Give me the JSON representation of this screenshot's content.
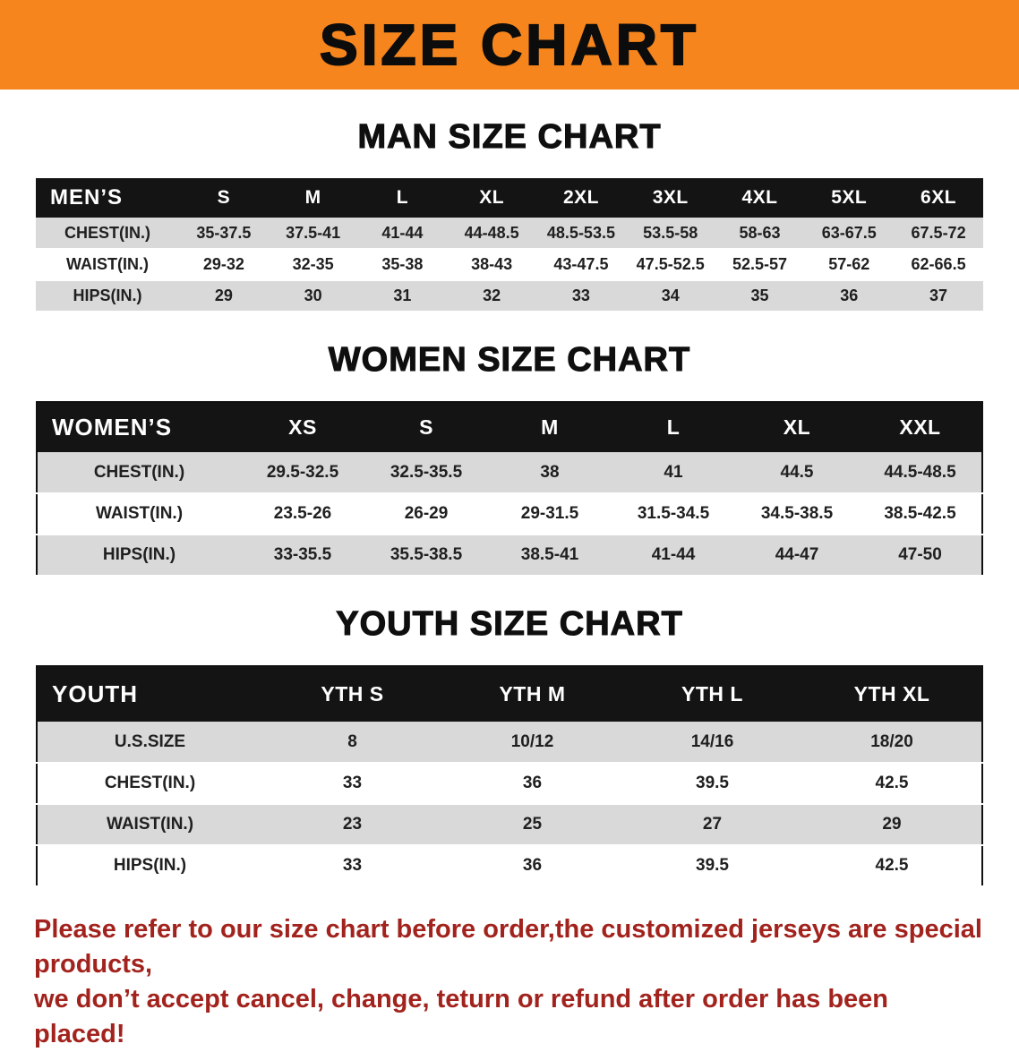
{
  "banner": {
    "title": "SIZE CHART"
  },
  "men": {
    "heading": "MAN SIZE CHART",
    "header": [
      "MEN’S",
      "S",
      "M",
      "L",
      "XL",
      "2XL",
      "3XL",
      "4XL",
      "5XL",
      "6XL"
    ],
    "rows": [
      [
        "CHEST(IN.)",
        "35-37.5",
        "37.5-41",
        "41-44",
        "44-48.5",
        "48.5-53.5",
        "53.5-58",
        "58-63",
        "63-67.5",
        "67.5-72"
      ],
      [
        "WAIST(IN.)",
        "29-32",
        "32-35",
        "35-38",
        "38-43",
        "43-47.5",
        "47.5-52.5",
        "52.5-57",
        "57-62",
        "62-66.5"
      ],
      [
        "HIPS(IN.)",
        "29",
        "30",
        "31",
        "32",
        "33",
        "34",
        "35",
        "36",
        "37"
      ]
    ]
  },
  "women": {
    "heading": "WOMEN SIZE CHART",
    "header": [
      "WOMEN’S",
      "XS",
      "S",
      "M",
      "L",
      "XL",
      "XXL"
    ],
    "rows": [
      [
        "CHEST(IN.)",
        "29.5-32.5",
        "32.5-35.5",
        "38",
        "41",
        "44.5",
        "44.5-48.5"
      ],
      [
        "WAIST(IN.)",
        "23.5-26",
        "26-29",
        "29-31.5",
        "31.5-34.5",
        "34.5-38.5",
        "38.5-42.5"
      ],
      [
        "HIPS(IN.)",
        "33-35.5",
        "35.5-38.5",
        "38.5-41",
        "41-44",
        "44-47",
        "47-50"
      ]
    ]
  },
  "youth": {
    "heading": "YOUTH SIZE CHART",
    "header": [
      "YOUTH",
      "YTH S",
      "YTH M",
      "YTH L",
      "YTH XL"
    ],
    "rows": [
      [
        "U.S.SIZE",
        "8",
        "10/12",
        "14/16",
        "18/20"
      ],
      [
        "CHEST(IN.)",
        "33",
        "36",
        "39.5",
        "42.5"
      ],
      [
        "WAIST(IN.)",
        "23",
        "25",
        "27",
        "29"
      ],
      [
        "HIPS(IN.)",
        "33",
        "36",
        "39.5",
        "42.5"
      ]
    ]
  },
  "disclaimer": {
    "line1": "Please refer to our size chart before order,the customized jerseys are special products,",
    "line2": "we don’t accept cancel, change, teturn or refund after order has been placed!"
  },
  "colors": {
    "banner_orange": "#f6851d",
    "header_black": "#141414",
    "row_gray": "#d9d9d9",
    "disclaimer_red": "#a2231d"
  }
}
